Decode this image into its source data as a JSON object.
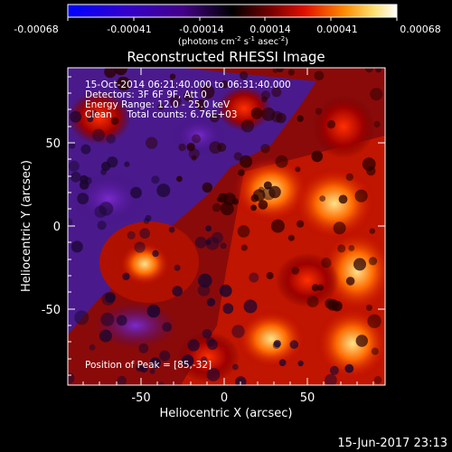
{
  "colorbar": {
    "tick_labels": [
      "-0.00068",
      "-0.00041",
      "-0.00014",
      "0.00014",
      "0.00041",
      "0.00068"
    ],
    "units_prefix": "(photons cm",
    "units_exp1": "-2",
    "units_mid": " s",
    "units_exp2": "-1",
    "units_mid2": " asec",
    "units_exp3": "-2",
    "units_suffix": ")"
  },
  "title": "Reconstructed RHESSI Image",
  "info": {
    "line1": "15-Oct-2014 06:21:40.000 to 06:31:40.000",
    "line2": "Detectors: 3F 6F 9F, Att 0",
    "line3": "Energy Range: 12.0 - 25.0 keV",
    "line4": "Clean     Total counts: 6.76E+03",
    "peak": "Position of Peak = [85,-32]"
  },
  "axes": {
    "xlabel": "Heliocentric X (arcsec)",
    "ylabel": "Heliocentric Y (arcsec)",
    "x_ticks": [
      "-50",
      "0",
      "50"
    ],
    "y_ticks": [
      "50",
      "0",
      "-50"
    ]
  },
  "footer_date": "15-Jun-2017 23:13",
  "colors": {
    "background": "#000000",
    "foreground": "#ffffff"
  }
}
